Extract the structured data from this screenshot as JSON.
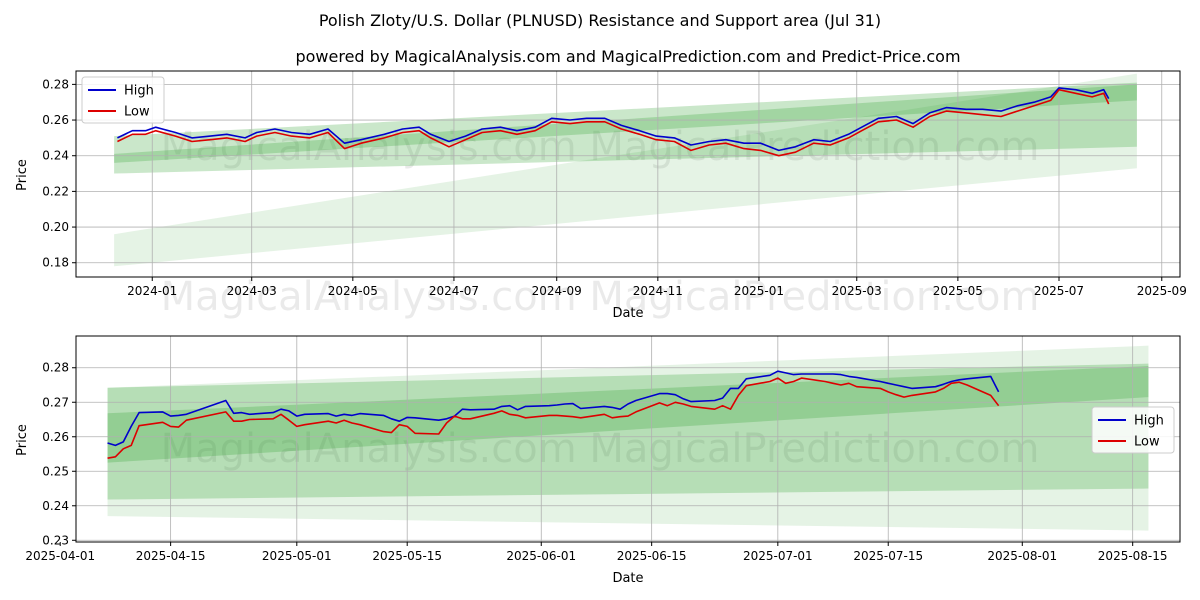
{
  "figure": {
    "title": "Polish Zloty/U.S. Dollar (PLNUSD) Resistance and Support area (Jul 31)",
    "subtitle": "powered by MagicalAnalysis.com and MagicalPrediction.com and Predict-Price.com",
    "watermark": "MagicalAnalysis.com   MagicalPrediction.com"
  },
  "colors": {
    "high": "#0000cc",
    "low": "#dd0000",
    "band": "#2ca02c",
    "grid": "#b0b0b0"
  },
  "chart_data": [
    {
      "type": "line",
      "title": "",
      "xlabel": "Date",
      "ylabel": "Price",
      "xlim": [
        "2023-11-16",
        "2025-09-12"
      ],
      "ylim": [
        0.172,
        0.2875
      ],
      "xticks": [
        "2024-01",
        "2024-03",
        "2024-05",
        "2024-07",
        "2024-09",
        "2024-11",
        "2025-01",
        "2025-03",
        "2025-05",
        "2025-07",
        "2025-09"
      ],
      "xtick_dates": [
        "2024-01-01",
        "2024-03-01",
        "2024-05-01",
        "2024-07-01",
        "2024-09-01",
        "2024-11-01",
        "2025-01-01",
        "2025-03-01",
        "2025-05-01",
        "2025-07-01",
        "2025-09-01"
      ],
      "yticks": [
        "0.18",
        "0.20",
        "0.22",
        "0.24",
        "0.26",
        "0.28"
      ],
      "ytick_values": [
        0.18,
        0.2,
        0.22,
        0.24,
        0.26,
        0.28
      ],
      "grid": true,
      "legend": "upper left",
      "legend_entries": [
        "High",
        "Low"
      ],
      "bands": [
        {
          "x": [
            "2023-12-09",
            "2025-08-17"
          ],
          "upper": [
            0.251,
            0.281
          ],
          "lower": [
            0.23,
            0.245
          ],
          "alpha": 0.25
        },
        {
          "x": [
            "2023-12-09",
            "2025-08-17"
          ],
          "upper": [
            0.196,
            0.286
          ],
          "lower": [
            0.178,
            0.233
          ],
          "alpha": 0.12
        },
        {
          "x": [
            "2023-12-09",
            "2025-08-17"
          ],
          "upper": [
            0.241,
            0.28
          ],
          "lower": [
            0.236,
            0.271
          ],
          "alpha": 0.25
        }
      ],
      "series": [
        {
          "name": "High",
          "x": [
            "2023-12-11",
            "2023-12-20",
            "2023-12-28",
            "2024-01-03",
            "2024-01-15",
            "2024-01-25",
            "2024-02-05",
            "2024-02-15",
            "2024-02-26",
            "2024-03-04",
            "2024-03-15",
            "2024-03-25",
            "2024-04-05",
            "2024-04-16",
            "2024-04-26",
            "2024-05-06",
            "2024-05-20",
            "2024-05-31",
            "2024-06-10",
            "2024-06-17",
            "2024-06-28",
            "2024-07-08",
            "2024-07-18",
            "2024-07-29",
            "2024-08-08",
            "2024-08-19",
            "2024-08-29",
            "2024-09-09",
            "2024-09-19",
            "2024-09-30",
            "2024-10-10",
            "2024-10-21",
            "2024-10-31",
            "2024-11-11",
            "2024-11-21",
            "2024-12-02",
            "2024-12-12",
            "2024-12-23",
            "2025-01-02",
            "2025-01-13",
            "2025-01-23",
            "2025-02-03",
            "2025-02-13",
            "2025-02-24",
            "2025-03-04",
            "2025-03-14",
            "2025-03-25",
            "2025-04-04",
            "2025-04-14",
            "2025-04-24",
            "2025-05-06",
            "2025-05-16",
            "2025-05-27",
            "2025-06-06",
            "2025-06-16",
            "2025-06-26",
            "2025-07-01",
            "2025-07-11",
            "2025-07-21",
            "2025-07-28",
            "2025-07-31"
          ],
          "values": [
            0.25,
            0.254,
            0.254,
            0.256,
            0.253,
            0.25,
            0.251,
            0.252,
            0.25,
            0.253,
            0.255,
            0.253,
            0.252,
            0.255,
            0.247,
            0.249,
            0.252,
            0.255,
            0.256,
            0.252,
            0.248,
            0.251,
            0.255,
            0.256,
            0.254,
            0.256,
            0.261,
            0.26,
            0.261,
            0.261,
            0.257,
            0.254,
            0.251,
            0.25,
            0.246,
            0.248,
            0.249,
            0.247,
            0.247,
            0.243,
            0.245,
            0.249,
            0.248,
            0.252,
            0.256,
            0.261,
            0.262,
            0.258,
            0.264,
            0.267,
            0.266,
            0.266,
            0.265,
            0.268,
            0.27,
            0.273,
            0.278,
            0.277,
            0.275,
            0.277,
            0.272
          ]
        },
        {
          "name": "Low",
          "x": [
            "2023-12-11",
            "2023-12-20",
            "2023-12-28",
            "2024-01-03",
            "2024-01-15",
            "2024-01-25",
            "2024-02-05",
            "2024-02-15",
            "2024-02-26",
            "2024-03-04",
            "2024-03-15",
            "2024-03-25",
            "2024-04-05",
            "2024-04-16",
            "2024-04-26",
            "2024-05-06",
            "2024-05-20",
            "2024-05-31",
            "2024-06-10",
            "2024-06-17",
            "2024-06-28",
            "2024-07-08",
            "2024-07-18",
            "2024-07-29",
            "2024-08-08",
            "2024-08-19",
            "2024-08-29",
            "2024-09-09",
            "2024-09-19",
            "2024-09-30",
            "2024-10-10",
            "2024-10-21",
            "2024-10-31",
            "2024-11-11",
            "2024-11-21",
            "2024-12-02",
            "2024-12-12",
            "2024-12-23",
            "2025-01-02",
            "2025-01-13",
            "2025-01-23",
            "2025-02-03",
            "2025-02-13",
            "2025-02-24",
            "2025-03-04",
            "2025-03-14",
            "2025-03-25",
            "2025-04-04",
            "2025-04-14",
            "2025-04-24",
            "2025-05-06",
            "2025-05-16",
            "2025-05-27",
            "2025-06-06",
            "2025-06-16",
            "2025-06-26",
            "2025-07-01",
            "2025-07-11",
            "2025-07-21",
            "2025-07-28",
            "2025-07-31"
          ],
          "values": [
            0.248,
            0.252,
            0.252,
            0.254,
            0.251,
            0.248,
            0.249,
            0.25,
            0.248,
            0.251,
            0.253,
            0.251,
            0.25,
            0.253,
            0.244,
            0.247,
            0.25,
            0.253,
            0.254,
            0.25,
            0.245,
            0.249,
            0.253,
            0.254,
            0.252,
            0.254,
            0.259,
            0.258,
            0.259,
            0.259,
            0.255,
            0.252,
            0.249,
            0.248,
            0.243,
            0.246,
            0.247,
            0.244,
            0.243,
            0.24,
            0.242,
            0.247,
            0.246,
            0.25,
            0.254,
            0.259,
            0.26,
            0.256,
            0.262,
            0.265,
            0.264,
            0.263,
            0.262,
            0.265,
            0.268,
            0.271,
            0.277,
            0.275,
            0.273,
            0.275,
            0.269
          ]
        }
      ]
    },
    {
      "type": "line",
      "title": "",
      "xlabel": "Date",
      "ylabel": "Price",
      "xlim": [
        "2025-04-03",
        "2025-08-21"
      ],
      "ylim": [
        0.2295,
        0.2892
      ],
      "xticks": [
        "2025-04-01",
        "2025-04-15",
        "2025-05-01",
        "2025-05-15",
        "2025-06-01",
        "2025-06-15",
        "2025-07-01",
        "2025-07-15",
        "2025-08-01",
        "2025-08-15"
      ],
      "xtick_dates": [
        "2025-04-01",
        "2025-04-15",
        "2025-05-01",
        "2025-05-15",
        "2025-06-01",
        "2025-06-15",
        "2025-07-01",
        "2025-07-15",
        "2025-08-01",
        "2025-08-15"
      ],
      "yticks": [
        "0.23",
        "0.24",
        "0.25",
        "0.26",
        "0.27",
        "0.28"
      ],
      "ytick_values": [
        0.23,
        0.24,
        0.25,
        0.26,
        0.27,
        0.28
      ],
      "grid": true,
      "legend": "center right",
      "legend_entries": [
        "High",
        "Low"
      ],
      "bands": [
        {
          "x": [
            "2025-04-07",
            "2025-08-17"
          ],
          "upper": [
            0.2742,
            0.2812
          ],
          "lower": [
            0.2418,
            0.245
          ],
          "alpha": 0.25
        },
        {
          "x": [
            "2025-04-07",
            "2025-08-17"
          ],
          "upper": [
            0.2742,
            0.2864
          ],
          "lower": [
            0.237,
            0.2328
          ],
          "alpha": 0.12
        },
        {
          "x": [
            "2025-04-07",
            "2025-08-17"
          ],
          "upper": [
            0.2668,
            0.2805
          ],
          "lower": [
            0.2525,
            0.2715
          ],
          "alpha": 0.25
        }
      ],
      "series": [
        {
          "name": "High",
          "x": [
            "2025-04-07",
            "2025-04-08",
            "2025-04-09",
            "2025-04-10",
            "2025-04-11",
            "2025-04-14",
            "2025-04-15",
            "2025-04-16",
            "2025-04-17",
            "2025-04-22",
            "2025-04-23",
            "2025-04-24",
            "2025-04-25",
            "2025-04-28",
            "2025-04-29",
            "2025-04-30",
            "2025-05-01",
            "2025-05-02",
            "2025-05-05",
            "2025-05-06",
            "2025-05-07",
            "2025-05-08",
            "2025-05-09",
            "2025-05-12",
            "2025-05-13",
            "2025-05-14",
            "2025-05-15",
            "2025-05-16",
            "2025-05-19",
            "2025-05-20",
            "2025-05-21",
            "2025-05-22",
            "2025-05-23",
            "2025-05-26",
            "2025-05-27",
            "2025-05-28",
            "2025-05-29",
            "2025-05-30",
            "2025-06-02",
            "2025-06-03",
            "2025-06-04",
            "2025-06-05",
            "2025-06-06",
            "2025-06-09",
            "2025-06-10",
            "2025-06-11",
            "2025-06-12",
            "2025-06-13",
            "2025-06-16",
            "2025-06-17",
            "2025-06-18",
            "2025-06-19",
            "2025-06-20",
            "2025-06-23",
            "2025-06-24",
            "2025-06-25",
            "2025-06-26",
            "2025-06-27",
            "2025-06-30",
            "2025-07-01",
            "2025-07-02",
            "2025-07-03",
            "2025-07-04",
            "2025-07-07",
            "2025-07-08",
            "2025-07-09",
            "2025-07-10",
            "2025-07-11",
            "2025-07-14",
            "2025-07-15",
            "2025-07-16",
            "2025-07-17",
            "2025-07-18",
            "2025-07-21",
            "2025-07-22",
            "2025-07-23",
            "2025-07-24",
            "2025-07-25",
            "2025-07-28",
            "2025-07-29"
          ],
          "values": [
            0.2582,
            0.2575,
            0.2585,
            0.263,
            0.267,
            0.2672,
            0.266,
            0.2662,
            0.2665,
            0.2705,
            0.2668,
            0.267,
            0.2665,
            0.267,
            0.268,
            0.2675,
            0.266,
            0.2665,
            0.2667,
            0.266,
            0.2665,
            0.2662,
            0.2667,
            0.2662,
            0.2652,
            0.2645,
            0.2656,
            0.2655,
            0.2648,
            0.2652,
            0.266,
            0.268,
            0.2678,
            0.268,
            0.2688,
            0.269,
            0.2678,
            0.2688,
            0.269,
            0.2692,
            0.2695,
            0.2696,
            0.2682,
            0.2688,
            0.2685,
            0.268,
            0.2695,
            0.2705,
            0.2725,
            0.2725,
            0.2722,
            0.271,
            0.2702,
            0.2705,
            0.2712,
            0.274,
            0.274,
            0.2768,
            0.2778,
            0.279,
            0.2785,
            0.278,
            0.2782,
            0.2782,
            0.2782,
            0.278,
            0.2775,
            0.2772,
            0.276,
            0.2755,
            0.275,
            0.2745,
            0.274,
            0.2745,
            0.2752,
            0.276,
            0.2765,
            0.2768,
            0.2775,
            0.273
          ]
        },
        {
          "name": "Low",
          "x": [
            "2025-04-07",
            "2025-04-08",
            "2025-04-09",
            "2025-04-10",
            "2025-04-11",
            "2025-04-14",
            "2025-04-15",
            "2025-04-16",
            "2025-04-17",
            "2025-04-22",
            "2025-04-23",
            "2025-04-24",
            "2025-04-25",
            "2025-04-28",
            "2025-04-29",
            "2025-04-30",
            "2025-05-01",
            "2025-05-02",
            "2025-05-05",
            "2025-05-06",
            "2025-05-07",
            "2025-05-08",
            "2025-05-09",
            "2025-05-12",
            "2025-05-13",
            "2025-05-14",
            "2025-05-15",
            "2025-05-16",
            "2025-05-19",
            "2025-05-20",
            "2025-05-21",
            "2025-05-22",
            "2025-05-23",
            "2025-05-26",
            "2025-05-27",
            "2025-05-28",
            "2025-05-29",
            "2025-05-30",
            "2025-06-02",
            "2025-06-03",
            "2025-06-04",
            "2025-06-05",
            "2025-06-06",
            "2025-06-09",
            "2025-06-10",
            "2025-06-11",
            "2025-06-12",
            "2025-06-13",
            "2025-06-16",
            "2025-06-17",
            "2025-06-18",
            "2025-06-19",
            "2025-06-20",
            "2025-06-23",
            "2025-06-24",
            "2025-06-25",
            "2025-06-26",
            "2025-06-27",
            "2025-06-30",
            "2025-07-01",
            "2025-07-02",
            "2025-07-03",
            "2025-07-04",
            "2025-07-07",
            "2025-07-08",
            "2025-07-09",
            "2025-07-10",
            "2025-07-11",
            "2025-07-14",
            "2025-07-15",
            "2025-07-16",
            "2025-07-17",
            "2025-07-18",
            "2025-07-21",
            "2025-07-22",
            "2025-07-23",
            "2025-07-24",
            "2025-07-25",
            "2025-07-28",
            "2025-07-29"
          ],
          "values": [
            0.2538,
            0.2542,
            0.2565,
            0.2575,
            0.2632,
            0.2642,
            0.263,
            0.2628,
            0.2648,
            0.2672,
            0.2645,
            0.2645,
            0.265,
            0.2652,
            0.2665,
            0.2648,
            0.263,
            0.2635,
            0.2645,
            0.264,
            0.2648,
            0.264,
            0.2635,
            0.2615,
            0.2612,
            0.2635,
            0.263,
            0.261,
            0.2608,
            0.264,
            0.266,
            0.2652,
            0.2652,
            0.2668,
            0.2675,
            0.2665,
            0.2662,
            0.2655,
            0.2662,
            0.2662,
            0.266,
            0.2658,
            0.2655,
            0.2665,
            0.2655,
            0.2658,
            0.266,
            0.2672,
            0.2698,
            0.269,
            0.27,
            0.2695,
            0.2688,
            0.268,
            0.269,
            0.268,
            0.272,
            0.2748,
            0.276,
            0.277,
            0.2755,
            0.276,
            0.277,
            0.276,
            0.2755,
            0.275,
            0.2755,
            0.2745,
            0.274,
            0.273,
            0.2722,
            0.2715,
            0.272,
            0.273,
            0.274,
            0.2755,
            0.2758,
            0.275,
            0.272,
            0.269
          ]
        }
      ]
    }
  ]
}
